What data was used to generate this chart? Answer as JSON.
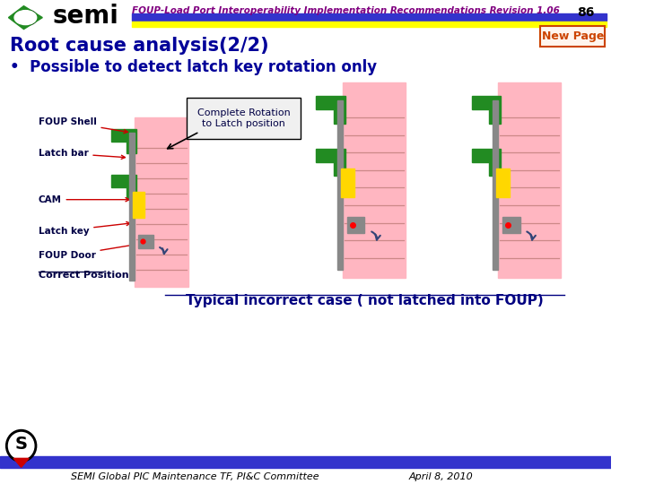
{
  "title_text": "FOUP-Load Port Interoperability Implementation Recommendations Revision 1.06",
  "page_num": "86",
  "section_title": "Root cause analysis(2/2)",
  "new_page_label": "New Page",
  "bullet": "Possible to detect latch key rotation only",
  "diagram_label1": "FOUP Shell",
  "diagram_label2": "Latch bar",
  "diagram_label3": "CAM",
  "diagram_label4": "Latch key",
  "diagram_label5": "FOUP Door",
  "diagram_label6": "Correct Position",
  "callout_text": "Complete Rotation\nto Latch position",
  "bottom_label": "Typical incorrect case ( not latched into FOUP)",
  "footer_left": "SEMI Global PIC Maintenance TF, PI&C Committee",
  "footer_right": "April 8, 2010",
  "bg_color": "#ffffff",
  "header_bar1_color": "#3333cc",
  "header_bar2_color": "#ffff00",
  "title_color": "#800080",
  "section_color": "#000099",
  "bullet_color": "#000099",
  "new_page_color": "#cc4400",
  "bottom_bar_color": "#3333cc",
  "bottom_label_color": "#000080",
  "footer_color": "#000000",
  "green_color": "#228B22",
  "pink_color": "#FFB6C1",
  "yellow_color": "#FFD700",
  "gray_color": "#888888",
  "blue_color": "#4169E1",
  "red_dot_color": "#ff0000"
}
